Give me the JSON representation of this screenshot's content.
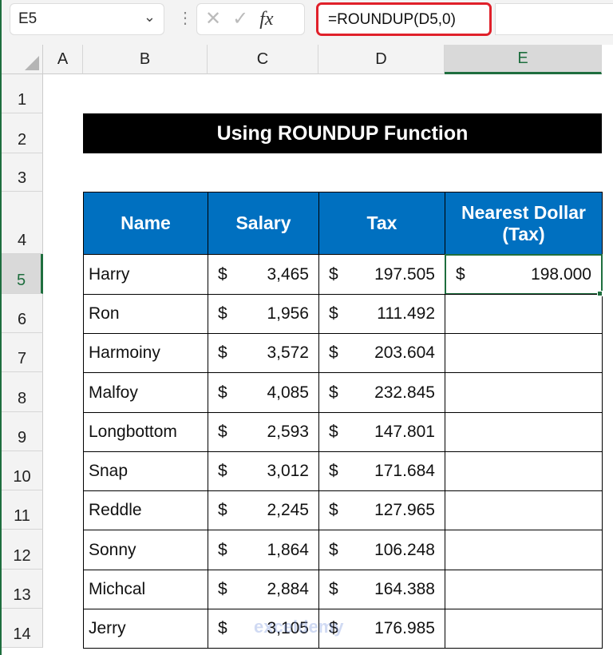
{
  "name_box": "E5",
  "formula": "=ROUNDUP(D5,0)",
  "fx_label": "fx",
  "columns": [
    "A",
    "B",
    "C",
    "D",
    "E"
  ],
  "rows": [
    "1",
    "2",
    "3",
    "4",
    "5",
    "6",
    "7",
    "8",
    "9",
    "10",
    "11",
    "12",
    "13",
    "14"
  ],
  "selected_cell": "E5",
  "title": "Using ROUNDUP Function",
  "headers": [
    "Name",
    "Salary",
    "Tax",
    "Nearest Dollar (Tax)"
  ],
  "currency": "$",
  "data": [
    {
      "name": "Harry",
      "salary": "3,465",
      "tax": "197.505",
      "nearest": "198.000"
    },
    {
      "name": "Ron",
      "salary": "1,956",
      "tax": "111.492",
      "nearest": ""
    },
    {
      "name": "Harmoiny",
      "salary": "3,572",
      "tax": "203.604",
      "nearest": ""
    },
    {
      "name": "Malfoy",
      "salary": "4,085",
      "tax": "232.845",
      "nearest": ""
    },
    {
      "name": "Longbottom",
      "salary": "2,593",
      "tax": "147.801",
      "nearest": ""
    },
    {
      "name": "Snap",
      "salary": "3,012",
      "tax": "171.684",
      "nearest": ""
    },
    {
      "name": "Reddle",
      "salary": "2,245",
      "tax": "127.965",
      "nearest": ""
    },
    {
      "name": "Sonny",
      "salary": "1,864",
      "tax": "106.248",
      "nearest": ""
    },
    {
      "name": "Michcal",
      "salary": "2,884",
      "tax": "164.388",
      "nearest": ""
    },
    {
      "name": "Jerry",
      "salary": "3,105",
      "tax": "176.985",
      "nearest": ""
    }
  ],
  "watermark": "exceldemy",
  "colors": {
    "header_bg": "#0070c0",
    "title_bg": "#000000",
    "selection": "#1e6e3e",
    "formula_highlight": "#e0202a"
  }
}
